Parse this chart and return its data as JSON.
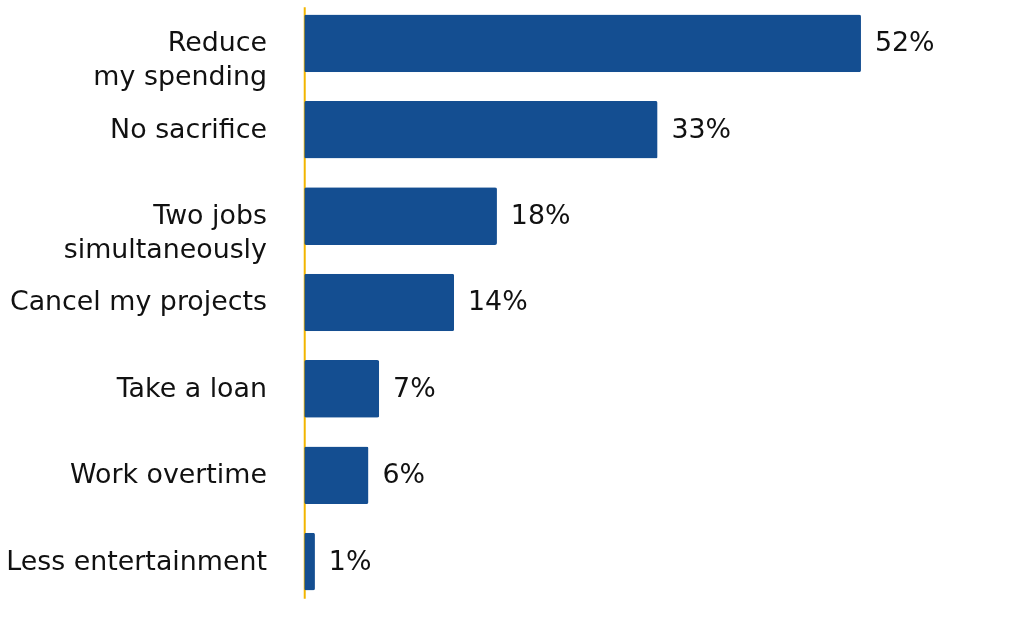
{
  "chart_data": {
    "type": "bar",
    "orientation": "horizontal",
    "categories": [
      "Reduce\nmy spending",
      "No sacrifice",
      "Two jobs\nsimultaneously",
      "Cancel my projects",
      "Take a loan",
      "Work overtime",
      "Less entertainment"
    ],
    "series": [
      {
        "color": "#144e91",
        "values": [
          52,
          33,
          18,
          14,
          7,
          6,
          1
        ],
        "value_labels": [
          "52%",
          "33%",
          "18%",
          "14%",
          "7%",
          "6%",
          "1%"
        ]
      }
    ]
  }
}
